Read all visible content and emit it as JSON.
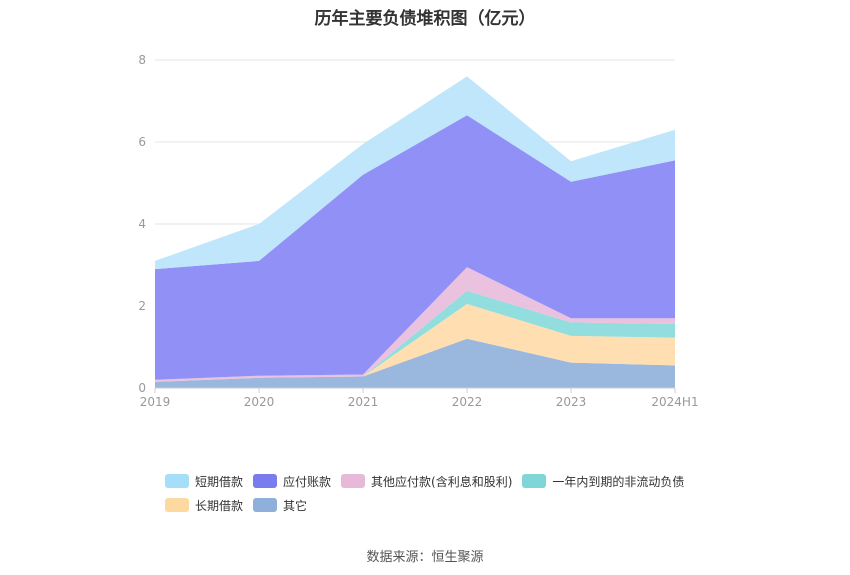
{
  "chart_data": {
    "type": "area",
    "stacked": true,
    "title": "历年主要负债堆积图（亿元）",
    "categories": [
      "2019",
      "2020",
      "2021",
      "2022",
      "2023",
      "2024H1"
    ],
    "ylim": [
      0,
      8
    ],
    "yticks": [
      "0",
      "2",
      "4",
      "6",
      "8"
    ],
    "grid": true,
    "legend_position": "bottom",
    "series": [
      {
        "name": "其它",
        "color": "#8fb0d9",
        "values": [
          0.15,
          0.25,
          0.28,
          1.2,
          0.62,
          0.55
        ]
      },
      {
        "name": "长期借款",
        "color": "#ffdca8",
        "values": [
          0,
          0,
          0,
          0.85,
          0.65,
          0.68
        ]
      },
      {
        "name": "一年内到期的非流动负债",
        "color": "#86d9d9",
        "values": [
          0,
          0,
          0,
          0.32,
          0.33,
          0.33
        ]
      },
      {
        "name": "其他应付款(含利息和股利)",
        "color": "#e8bbdc",
        "values": [
          0.05,
          0.05,
          0.05,
          0.58,
          0.1,
          0.14
        ]
      },
      {
        "name": "应付账款",
        "color": "#8584f6",
        "values": [
          2.7,
          2.8,
          4.87,
          3.7,
          3.33,
          3.85
        ]
      },
      {
        "name": "短期借款",
        "color": "#b8e3fb",
        "values": [
          0.2,
          0.9,
          0.75,
          0.95,
          0.5,
          0.75
        ]
      }
    ],
    "legend_rows": [
      [
        "短期借款",
        "应付账款",
        "其他应付款(含利息和股利)",
        "一年内到期的非流动负债"
      ],
      [
        "长期借款",
        "其它"
      ]
    ]
  },
  "legend_colors": {
    "短期借款": "#a6defa",
    "应付账款": "#7b7bf0",
    "其他应付款(含利息和股利)": "#e8b8d9",
    "一年内到期的非流动负债": "#7fd6d6",
    "长期借款": "#fdd8a1",
    "其它": "#8fb0da"
  },
  "source_note": "数据来源：恒生聚源"
}
